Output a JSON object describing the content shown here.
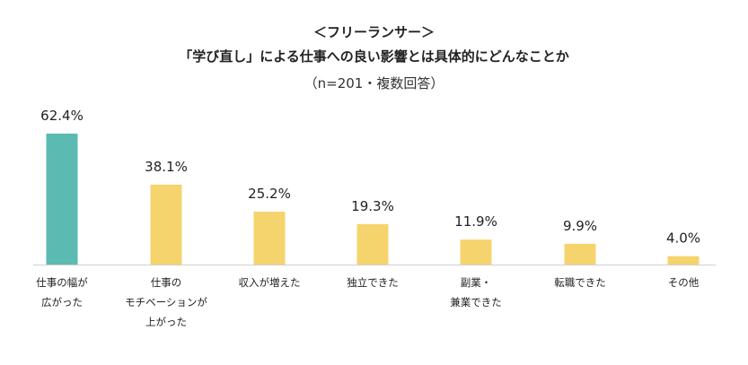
{
  "title_line1": "＜フリーランサー＞",
  "title_line2": "「学び直し」による仕事への良い影響とは具体的にどんなことか",
  "title_line3": "（n=201・複数回答）",
  "colors": {
    "highlight": "#5BBAB2",
    "bar": "#F5D46E",
    "axis": "#D0D0D0",
    "text": "#222222"
  },
  "chart_data": {
    "type": "bar",
    "categories": [
      [
        "仕事の幅が",
        "広がった"
      ],
      [
        "仕事の",
        "モチベーションが",
        "上がった"
      ],
      [
        "収入が増えた"
      ],
      [
        "独立できた"
      ],
      [
        "副業・",
        "兼業できた"
      ],
      [
        "転職できた"
      ],
      [
        "その他"
      ]
    ],
    "values": [
      62.4,
      38.1,
      25.2,
      19.3,
      11.9,
      9.9,
      4.0
    ],
    "value_labels": [
      "62.4%",
      "38.1%",
      "25.2%",
      "19.3%",
      "11.9%",
      "9.9%",
      "4.0%"
    ],
    "highlight_index": 0,
    "ylim": [
      0,
      62.4
    ],
    "grid": false,
    "axis_visible": false
  }
}
